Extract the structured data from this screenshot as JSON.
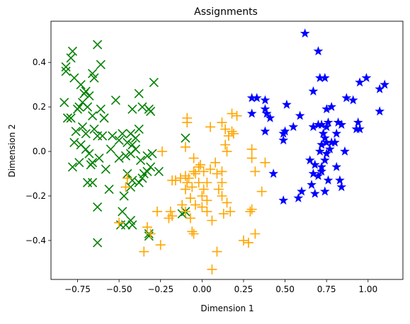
{
  "chart_data": {
    "type": "scatter",
    "title": "Assignments",
    "xlabel": "Dimension 1",
    "ylabel": "Dimension 2",
    "xlim": [
      -0.91,
      1.21
    ],
    "ylim": [
      -0.575,
      0.585
    ],
    "xticks": [
      -0.75,
      -0.5,
      -0.25,
      0.0,
      0.25,
      0.5,
      0.75,
      1.0
    ],
    "xtick_labels": [
      "−0.75",
      "−0.50",
      "−0.25",
      "0.00",
      "0.25",
      "0.50",
      "0.75",
      "1.00"
    ],
    "yticks": [
      -0.4,
      -0.2,
      0.0,
      0.2,
      0.4
    ],
    "ytick_labels": [
      "−0.4",
      "−0.2",
      "0.0",
      "0.2",
      "0.4"
    ],
    "grid": false,
    "legend": false,
    "series": [
      {
        "marker": "x",
        "color": "#008000",
        "points": [
          [
            -0.78,
            0.45
          ],
          [
            -0.63,
            0.48
          ],
          [
            -0.61,
            0.39
          ],
          [
            -0.82,
            0.38
          ],
          [
            -0.79,
            0.42
          ],
          [
            -0.66,
            0.35
          ],
          [
            -0.82,
            0.36
          ],
          [
            -0.77,
            0.33
          ],
          [
            -0.73,
            0.3
          ],
          [
            -0.65,
            0.33
          ],
          [
            -0.7,
            0.27
          ],
          [
            -0.83,
            0.22
          ],
          [
            -0.72,
            0.22
          ],
          [
            -0.71,
            0.26
          ],
          [
            -0.68,
            0.25
          ],
          [
            -0.74,
            0.2
          ],
          [
            -0.79,
            0.15
          ],
          [
            -0.75,
            0.19
          ],
          [
            -0.69,
            0.2
          ],
          [
            -0.66,
            0.16
          ],
          [
            -0.61,
            0.19
          ],
          [
            -0.59,
            0.15
          ],
          [
            -0.52,
            0.23
          ],
          [
            -0.38,
            0.26
          ],
          [
            -0.36,
            0.2
          ],
          [
            -0.42,
            0.19
          ],
          [
            -0.32,
            0.19
          ],
          [
            -0.31,
            0.18
          ],
          [
            -0.29,
            0.31
          ],
          [
            -0.81,
            0.15
          ],
          [
            -0.76,
            0.09
          ],
          [
            -0.72,
            0.11
          ],
          [
            -0.7,
            0.08
          ],
          [
            -0.65,
            0.1
          ],
          [
            -0.63,
            0.07
          ],
          [
            -0.6,
            0.07
          ],
          [
            -0.54,
            0.07
          ],
          [
            -0.5,
            0.05
          ],
          [
            -0.48,
            0.08
          ],
          [
            -0.45,
            0.04
          ],
          [
            -0.43,
            0.08
          ],
          [
            -0.42,
            0.03
          ],
          [
            -0.4,
            0.06
          ],
          [
            -0.38,
            0.1
          ],
          [
            -0.77,
            0.04
          ],
          [
            -0.73,
            0.03
          ],
          [
            -0.7,
            0.01
          ],
          [
            -0.68,
            -0.01
          ],
          [
            -0.62,
            -0.03
          ],
          [
            -0.55,
            0.01
          ],
          [
            -0.5,
            -0.03
          ],
          [
            -0.46,
            -0.02
          ],
          [
            -0.43,
            -0.01
          ],
          [
            -0.4,
            0.01
          ],
          [
            -0.37,
            -0.04
          ],
          [
            -0.33,
            -0.02
          ],
          [
            -0.3,
            -0.01
          ],
          [
            -0.78,
            -0.07
          ],
          [
            -0.74,
            -0.05
          ],
          [
            -0.66,
            -0.05
          ],
          [
            -0.67,
            -0.06
          ],
          [
            -0.58,
            -0.08
          ],
          [
            -0.45,
            -0.1
          ],
          [
            -0.35,
            -0.1
          ],
          [
            -0.33,
            -0.09
          ],
          [
            -0.26,
            -0.09
          ],
          [
            -0.42,
            -0.13
          ],
          [
            -0.69,
            -0.14
          ],
          [
            -0.66,
            -0.14
          ],
          [
            -0.56,
            -0.17
          ],
          [
            -0.47,
            -0.2
          ],
          [
            -0.43,
            -0.16
          ],
          [
            -0.38,
            -0.14
          ],
          [
            -0.31,
            -0.07
          ],
          [
            -0.63,
            -0.25
          ],
          [
            -0.48,
            -0.27
          ],
          [
            -0.43,
            -0.31
          ],
          [
            -0.49,
            -0.33
          ],
          [
            -0.46,
            -0.33
          ],
          [
            -0.42,
            -0.33
          ],
          [
            -0.1,
            -0.27
          ],
          [
            -0.12,
            -0.28
          ],
          [
            -0.32,
            -0.37
          ],
          [
            -0.32,
            -0.38
          ],
          [
            -0.63,
            -0.41
          ],
          [
            -0.1,
            0.06
          ],
          [
            -0.36,
            -0.12
          ]
        ]
      },
      {
        "marker": "+",
        "color": "#ffa500",
        "points": [
          [
            -0.09,
            0.15
          ],
          [
            -0.09,
            0.13
          ],
          [
            0.18,
            0.17
          ],
          [
            0.21,
            0.16
          ],
          [
            0.12,
            0.13
          ],
          [
            0.05,
            0.11
          ],
          [
            0.14,
            0.1
          ],
          [
            0.18,
            0.09
          ],
          [
            0.19,
            0.08
          ],
          [
            0.16,
            0.07
          ],
          [
            -0.24,
            0.0
          ],
          [
            -0.1,
            0.02
          ],
          [
            0.14,
            0.03
          ],
          [
            0.15,
            0.0
          ],
          [
            0.3,
            0.01
          ],
          [
            0.3,
            -0.03
          ],
          [
            -0.05,
            -0.03
          ],
          [
            -0.01,
            -0.06
          ],
          [
            0.08,
            -0.05
          ],
          [
            0.38,
            -0.05
          ],
          [
            -0.05,
            -0.09
          ],
          [
            -0.02,
            -0.07
          ],
          [
            0.01,
            -0.09
          ],
          [
            0.05,
            -0.08
          ],
          [
            0.09,
            -0.1
          ],
          [
            0.12,
            -0.09
          ],
          [
            0.32,
            -0.09
          ],
          [
            -0.45,
            -0.12
          ],
          [
            -0.18,
            -0.13
          ],
          [
            -0.16,
            -0.13
          ],
          [
            -0.13,
            -0.12
          ],
          [
            -0.1,
            -0.11
          ],
          [
            -0.09,
            -0.14
          ],
          [
            -0.08,
            -0.12
          ],
          [
            -0.04,
            -0.1
          ],
          [
            -0.02,
            -0.14
          ],
          [
            0.03,
            -0.14
          ],
          [
            0.12,
            -0.14
          ],
          [
            -0.46,
            -0.16
          ],
          [
            -0.1,
            -0.17
          ],
          [
            -0.06,
            -0.16
          ],
          [
            0.01,
            -0.17
          ],
          [
            0.1,
            -0.17
          ],
          [
            0.36,
            -0.18
          ],
          [
            -0.07,
            -0.21
          ],
          [
            0.0,
            -0.2
          ],
          [
            0.03,
            -0.22
          ],
          [
            0.12,
            -0.2
          ],
          [
            0.15,
            -0.23
          ],
          [
            -0.12,
            -0.24
          ],
          [
            -0.04,
            -0.24
          ],
          [
            0.0,
            -0.25
          ],
          [
            0.17,
            -0.27
          ],
          [
            -0.27,
            -0.27
          ],
          [
            -0.19,
            -0.27
          ],
          [
            -0.18,
            -0.29
          ],
          [
            -0.1,
            -0.27
          ],
          [
            0.03,
            -0.27
          ],
          [
            0.3,
            -0.26
          ],
          [
            0.29,
            -0.27
          ],
          [
            -0.2,
            -0.3
          ],
          [
            -0.07,
            -0.3
          ],
          [
            0.13,
            -0.28
          ],
          [
            0.06,
            -0.31
          ],
          [
            -0.5,
            -0.32
          ],
          [
            -0.33,
            -0.34
          ],
          [
            -0.31,
            -0.37
          ],
          [
            -0.06,
            -0.36
          ],
          [
            -0.05,
            -0.37
          ],
          [
            0.32,
            -0.37
          ],
          [
            0.25,
            -0.4
          ],
          [
            0.28,
            -0.41
          ],
          [
            -0.25,
            -0.42
          ],
          [
            -0.35,
            -0.45
          ],
          [
            0.09,
            -0.45
          ],
          [
            0.06,
            -0.53
          ]
        ]
      },
      {
        "marker": "*",
        "color": "#0000ff",
        "points": [
          [
            0.62,
            0.53
          ],
          [
            0.7,
            0.45
          ],
          [
            0.71,
            0.33
          ],
          [
            0.74,
            0.33
          ],
          [
            0.67,
            0.27
          ],
          [
            0.95,
            0.31
          ],
          [
            0.99,
            0.33
          ],
          [
            1.07,
            0.28
          ],
          [
            1.1,
            0.3
          ],
          [
            0.87,
            0.24
          ],
          [
            0.91,
            0.23
          ],
          [
            0.3,
            0.24
          ],
          [
            0.33,
            0.24
          ],
          [
            0.38,
            0.23
          ],
          [
            0.51,
            0.21
          ],
          [
            0.38,
            0.19
          ],
          [
            0.75,
            0.19
          ],
          [
            0.78,
            0.2
          ],
          [
            0.39,
            0.17
          ],
          [
            0.3,
            0.17
          ],
          [
            0.59,
            0.16
          ],
          [
            0.41,
            0.15
          ],
          [
            1.07,
            0.18
          ],
          [
            0.76,
            0.13
          ],
          [
            0.7,
            0.12
          ],
          [
            0.82,
            0.13
          ],
          [
            0.84,
            0.12
          ],
          [
            0.94,
            0.13
          ],
          [
            0.93,
            0.1
          ],
          [
            0.95,
            0.1
          ],
          [
            0.55,
            0.11
          ],
          [
            0.72,
            0.12
          ],
          [
            0.75,
            0.11
          ],
          [
            0.67,
            0.11
          ],
          [
            0.38,
            0.09
          ],
          [
            0.5,
            0.09
          ],
          [
            0.49,
            0.08
          ],
          [
            0.81,
            0.08
          ],
          [
            0.73,
            0.08
          ],
          [
            0.74,
            0.06
          ],
          [
            0.49,
            0.05
          ],
          [
            0.72,
            0.03
          ],
          [
            0.75,
            0.04
          ],
          [
            0.78,
            0.04
          ],
          [
            0.8,
            0.04
          ],
          [
            0.77,
            0.01
          ],
          [
            0.86,
            0.0
          ],
          [
            0.71,
            0.0
          ],
          [
            0.75,
            -0.01
          ],
          [
            0.74,
            -0.04
          ],
          [
            0.65,
            -0.04
          ],
          [
            0.68,
            -0.06
          ],
          [
            0.72,
            -0.07
          ],
          [
            0.81,
            -0.07
          ],
          [
            0.72,
            -0.09
          ],
          [
            0.43,
            -0.1
          ],
          [
            0.67,
            -0.1
          ],
          [
            0.7,
            -0.11
          ],
          [
            0.76,
            -0.13
          ],
          [
            0.83,
            -0.13
          ],
          [
            0.66,
            -0.15
          ],
          [
            0.84,
            -0.16
          ],
          [
            0.6,
            -0.18
          ],
          [
            0.74,
            -0.18
          ],
          [
            0.68,
            -0.19
          ],
          [
            0.58,
            -0.21
          ],
          [
            0.49,
            -0.22
          ]
        ]
      }
    ]
  }
}
